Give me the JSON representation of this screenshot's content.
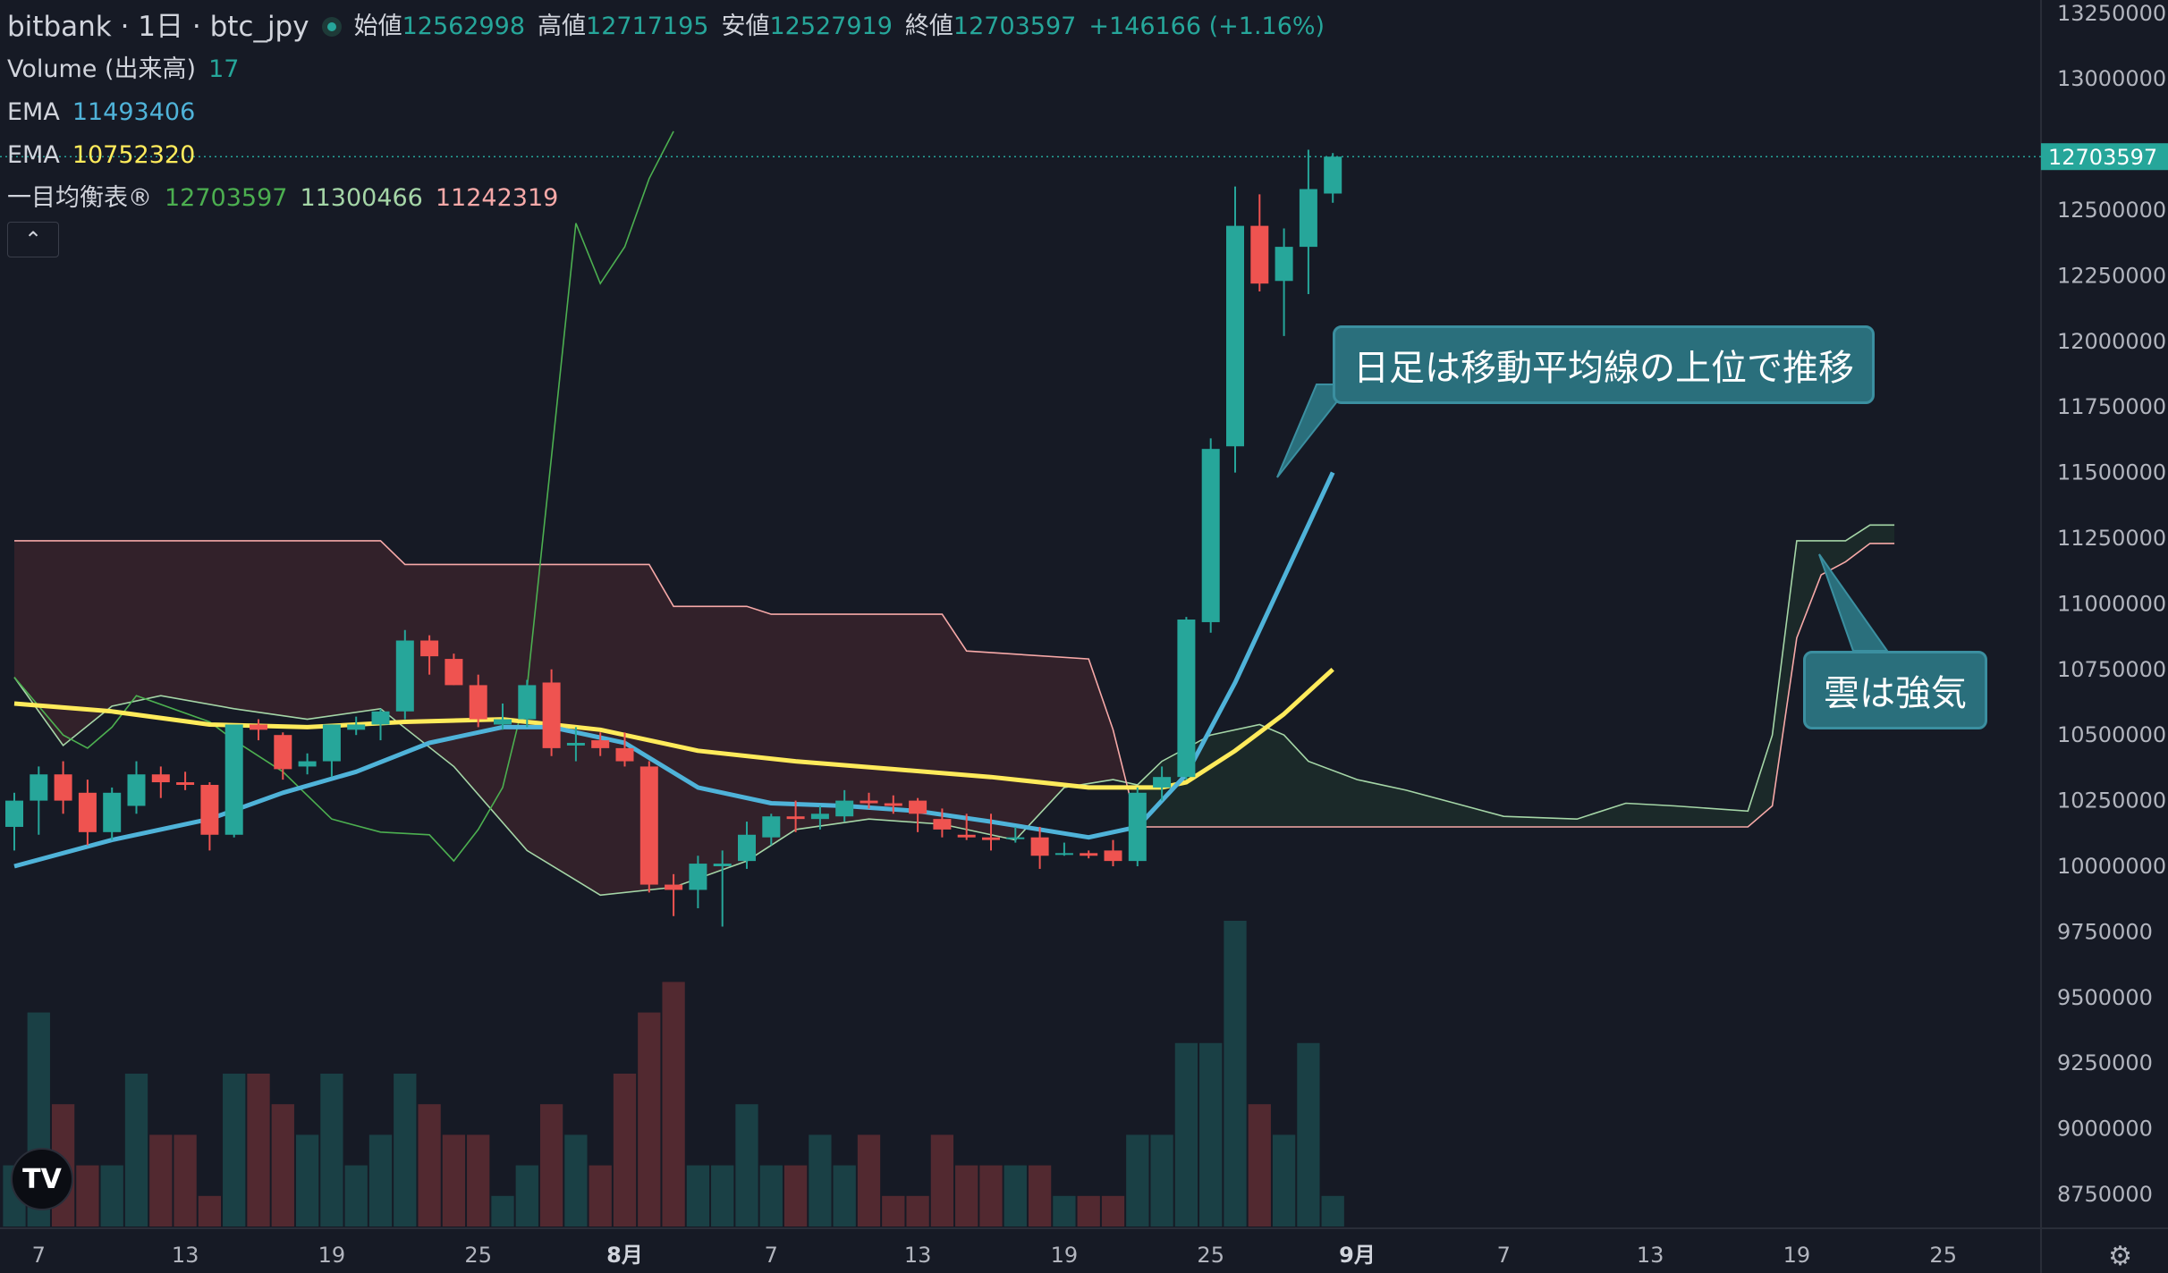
{
  "header": {
    "symbol": "bitbank · 1日 · btc_jpy",
    "open_label": "始値",
    "open": "12562998",
    "high_label": "高値",
    "high": "12717195",
    "low_label": "安値",
    "low": "12527919",
    "close_label": "終値",
    "close": "12703597",
    "change": "+146166 (+1.16%)"
  },
  "indicators": {
    "volume": {
      "label": "Volume (出来高)",
      "value": "17"
    },
    "ema1": {
      "label": "EMA",
      "value": "11493406",
      "color": "#4fb3d9"
    },
    "ema2": {
      "label": "EMA",
      "value": "10752320",
      "color": "#ffeb5b"
    },
    "ichimoku": {
      "label": "一目均衡表®",
      "v1": "12703597",
      "v2": "11300466",
      "v3": "11242319"
    }
  },
  "annotations": {
    "daily": "日足は移動平均線の上位で推移",
    "cloud": "雲は強気"
  },
  "logo": "TV",
  "chart_data": {
    "type": "candlestick",
    "colors": {
      "up": "#26a69a",
      "down": "#ef5350",
      "ema_fast": "#4fb3d9",
      "ema_slow": "#ffeb5b",
      "lagging": "#4caf50",
      "span_a": "#a5d6a7",
      "span_b": "#f7a9a8"
    },
    "yaxis": {
      "ticks": [
        8750000,
        9000000,
        9250000,
        9500000,
        9750000,
        10000000,
        10250000,
        10500000,
        10750000,
        11000000,
        11250000,
        11500000,
        11750000,
        12000000,
        12250000,
        12500000,
        12750000,
        13000000,
        13250000
      ],
      "ylim": [
        8610000,
        13310000
      ],
      "last_price": "12703597"
    },
    "xaxis": {
      "tick_labels": [
        "7",
        "13",
        "19",
        "25",
        "8月",
        "7",
        "13",
        "19",
        "25",
        "9月",
        "7",
        "13",
        "19",
        "25"
      ],
      "tick_days": [
        1,
        7,
        13,
        19,
        25,
        31,
        37,
        43,
        49,
        55,
        61,
        67,
        73,
        79
      ]
    },
    "candles": [
      {
        "day": 0,
        "o": 10150000,
        "h": 10280000,
        "l": 10060000,
        "c": 10250000
      },
      {
        "day": 1,
        "o": 10250000,
        "h": 10380000,
        "l": 10120000,
        "c": 10350000
      },
      {
        "day": 2,
        "o": 10350000,
        "h": 10400000,
        "l": 10200000,
        "c": 10250000
      },
      {
        "day": 3,
        "o": 10280000,
        "h": 10330000,
        "l": 10080000,
        "c": 10130000
      },
      {
        "day": 4,
        "o": 10130000,
        "h": 10300000,
        "l": 10100000,
        "c": 10280000
      },
      {
        "day": 5,
        "o": 10230000,
        "h": 10400000,
        "l": 10200000,
        "c": 10350000
      },
      {
        "day": 6,
        "o": 10350000,
        "h": 10380000,
        "l": 10260000,
        "c": 10320000
      },
      {
        "day": 7,
        "o": 10320000,
        "h": 10360000,
        "l": 10290000,
        "c": 10310000
      },
      {
        "day": 8,
        "o": 10310000,
        "h": 10320000,
        "l": 10060000,
        "c": 10120000
      },
      {
        "day": 9,
        "o": 10120000,
        "h": 10540000,
        "l": 10110000,
        "c": 10540000
      },
      {
        "day": 10,
        "o": 10540000,
        "h": 10560000,
        "l": 10480000,
        "c": 10520000
      },
      {
        "day": 11,
        "o": 10500000,
        "h": 10510000,
        "l": 10330000,
        "c": 10370000
      },
      {
        "day": 12,
        "o": 10380000,
        "h": 10430000,
        "l": 10350000,
        "c": 10400000
      },
      {
        "day": 13,
        "o": 10400000,
        "h": 10540000,
        "l": 10340000,
        "c": 10540000
      },
      {
        "day": 14,
        "o": 10520000,
        "h": 10570000,
        "l": 10500000,
        "c": 10540000
      },
      {
        "day": 15,
        "o": 10540000,
        "h": 10600000,
        "l": 10480000,
        "c": 10590000
      },
      {
        "day": 16,
        "o": 10590000,
        "h": 10900000,
        "l": 10560000,
        "c": 10860000
      },
      {
        "day": 17,
        "o": 10860000,
        "h": 10880000,
        "l": 10730000,
        "c": 10800000
      },
      {
        "day": 18,
        "o": 10790000,
        "h": 10810000,
        "l": 10690000,
        "c": 10690000
      },
      {
        "day": 19,
        "o": 10690000,
        "h": 10730000,
        "l": 10530000,
        "c": 10560000
      },
      {
        "day": 20,
        "o": 10540000,
        "h": 10620000,
        "l": 10520000,
        "c": 10560000
      },
      {
        "day": 21,
        "o": 10560000,
        "h": 10710000,
        "l": 10530000,
        "c": 10690000
      },
      {
        "day": 22,
        "o": 10700000,
        "h": 10750000,
        "l": 10420000,
        "c": 10450000
      },
      {
        "day": 23,
        "o": 10460000,
        "h": 10530000,
        "l": 10400000,
        "c": 10470000
      },
      {
        "day": 24,
        "o": 10480000,
        "h": 10510000,
        "l": 10420000,
        "c": 10450000
      },
      {
        "day": 25,
        "o": 10450000,
        "h": 10510000,
        "l": 10380000,
        "c": 10400000
      },
      {
        "day": 26,
        "o": 10380000,
        "h": 10400000,
        "l": 9900000,
        "c": 9930000
      },
      {
        "day": 27,
        "o": 9930000,
        "h": 9970000,
        "l": 9810000,
        "c": 9910000
      },
      {
        "day": 28,
        "o": 9910000,
        "h": 10040000,
        "l": 9840000,
        "c": 10010000
      },
      {
        "day": 29,
        "o": 10000000,
        "h": 10060000,
        "l": 9770000,
        "c": 10010000
      },
      {
        "day": 30,
        "o": 10020000,
        "h": 10170000,
        "l": 9990000,
        "c": 10120000
      },
      {
        "day": 31,
        "o": 10110000,
        "h": 10200000,
        "l": 10080000,
        "c": 10190000
      },
      {
        "day": 32,
        "o": 10190000,
        "h": 10250000,
        "l": 10130000,
        "c": 10180000
      },
      {
        "day": 33,
        "o": 10180000,
        "h": 10230000,
        "l": 10140000,
        "c": 10200000
      },
      {
        "day": 34,
        "o": 10190000,
        "h": 10290000,
        "l": 10170000,
        "c": 10250000
      },
      {
        "day": 35,
        "o": 10250000,
        "h": 10280000,
        "l": 10220000,
        "c": 10240000
      },
      {
        "day": 36,
        "o": 10240000,
        "h": 10270000,
        "l": 10200000,
        "c": 10230000
      },
      {
        "day": 37,
        "o": 10250000,
        "h": 10260000,
        "l": 10130000,
        "c": 10200000
      },
      {
        "day": 38,
        "o": 10180000,
        "h": 10220000,
        "l": 10110000,
        "c": 10140000
      },
      {
        "day": 39,
        "o": 10120000,
        "h": 10200000,
        "l": 10100000,
        "c": 10110000
      },
      {
        "day": 40,
        "o": 10110000,
        "h": 10200000,
        "l": 10060000,
        "c": 10100000
      },
      {
        "day": 41,
        "o": 10110000,
        "h": 10150000,
        "l": 10090000,
        "c": 10110000
      },
      {
        "day": 42,
        "o": 10110000,
        "h": 10150000,
        "l": 9990000,
        "c": 10040000
      },
      {
        "day": 43,
        "o": 10050000,
        "h": 10090000,
        "l": 10040000,
        "c": 10050000
      },
      {
        "day": 44,
        "o": 10050000,
        "h": 10060000,
        "l": 10030000,
        "c": 10040000
      },
      {
        "day": 45,
        "o": 10060000,
        "h": 10100000,
        "l": 10000000,
        "c": 10020000
      },
      {
        "day": 46,
        "o": 10020000,
        "h": 10300000,
        "l": 10000000,
        "c": 10280000
      },
      {
        "day": 47,
        "o": 10300000,
        "h": 10380000,
        "l": 10250000,
        "c": 10340000
      },
      {
        "day": 48,
        "o": 10340000,
        "h": 10950000,
        "l": 10330000,
        "c": 10940000
      },
      {
        "day": 49,
        "o": 10930000,
        "h": 11630000,
        "l": 10890000,
        "c": 11590000
      },
      {
        "day": 50,
        "o": 11600000,
        "h": 12590000,
        "l": 11500000,
        "c": 12440000
      },
      {
        "day": 51,
        "o": 12440000,
        "h": 12560000,
        "l": 12190000,
        "c": 12220000
      },
      {
        "day": 52,
        "o": 12230000,
        "h": 12430000,
        "l": 12020000,
        "c": 12360000
      },
      {
        "day": 53,
        "o": 12360000,
        "h": 12730000,
        "l": 12180000,
        "c": 12580000
      },
      {
        "day": 54,
        "o": 12562998,
        "h": 12717195,
        "l": 12527919,
        "c": 12703597
      }
    ],
    "volume": [
      2,
      7,
      4,
      2,
      2,
      5,
      3,
      3,
      1,
      5,
      5,
      4,
      3,
      5,
      2,
      3,
      5,
      4,
      3,
      3,
      1,
      2,
      4,
      3,
      2,
      5,
      7,
      8,
      2,
      2,
      4,
      2,
      2,
      3,
      2,
      3,
      1,
      1,
      3,
      2,
      2,
      2,
      2,
      1,
      1,
      1,
      3,
      3,
      6,
      6,
      10,
      4,
      3,
      6,
      1
    ],
    "ema_fast": [
      [
        0,
        10000000
      ],
      [
        4,
        10100000
      ],
      [
        8,
        10180000
      ],
      [
        11,
        10280000
      ],
      [
        14,
        10360000
      ],
      [
        17,
        10470000
      ],
      [
        20,
        10530000
      ],
      [
        22,
        10530000
      ],
      [
        25,
        10470000
      ],
      [
        28,
        10300000
      ],
      [
        31,
        10240000
      ],
      [
        34,
        10230000
      ],
      [
        37,
        10210000
      ],
      [
        40,
        10170000
      ],
      [
        44,
        10110000
      ],
      [
        46,
        10150000
      ],
      [
        48,
        10350000
      ],
      [
        50,
        10700000
      ],
      [
        52,
        11100000
      ],
      [
        54,
        11500000
      ]
    ],
    "ema_slow": [
      [
        0,
        10620000
      ],
      [
        4,
        10590000
      ],
      [
        8,
        10540000
      ],
      [
        12,
        10530000
      ],
      [
        16,
        10550000
      ],
      [
        20,
        10560000
      ],
      [
        24,
        10520000
      ],
      [
        28,
        10440000
      ],
      [
        32,
        10400000
      ],
      [
        36,
        10370000
      ],
      [
        40,
        10340000
      ],
      [
        44,
        10300000
      ],
      [
        47,
        10300000
      ],
      [
        48,
        10320000
      ],
      [
        50,
        10440000
      ],
      [
        52,
        10580000
      ],
      [
        54,
        10750000
      ]
    ],
    "lagging": [
      [
        0,
        10720000
      ],
      [
        2,
        10500000
      ],
      [
        3,
        10450000
      ],
      [
        4,
        10530000
      ],
      [
        5,
        10650000
      ],
      [
        8,
        10550000
      ],
      [
        9,
        10480000
      ],
      [
        11,
        10360000
      ],
      [
        13,
        10180000
      ],
      [
        15,
        10130000
      ],
      [
        17,
        10120000
      ],
      [
        18,
        10020000
      ],
      [
        19,
        10140000
      ],
      [
        20,
        10300000
      ],
      [
        21,
        10680000
      ],
      [
        22,
        11560000
      ],
      [
        23,
        12450000
      ],
      [
        24,
        12220000
      ],
      [
        25,
        12360000
      ],
      [
        26,
        12620000
      ],
      [
        27,
        12800000
      ]
    ],
    "span_a": [
      [
        0,
        10720000
      ],
      [
        2,
        10460000
      ],
      [
        4,
        10610000
      ],
      [
        6,
        10650000
      ],
      [
        9,
        10600000
      ],
      [
        12,
        10560000
      ],
      [
        15,
        10600000
      ],
      [
        18,
        10380000
      ],
      [
        21,
        10060000
      ],
      [
        24,
        9890000
      ],
      [
        27,
        9920000
      ],
      [
        30,
        10020000
      ],
      [
        32,
        10140000
      ],
      [
        35,
        10180000
      ],
      [
        38,
        10160000
      ],
      [
        41,
        10100000
      ],
      [
        43,
        10300000
      ],
      [
        45,
        10330000
      ],
      [
        46,
        10310000
      ],
      [
        47,
        10400000
      ],
      [
        49,
        10500000
      ],
      [
        51,
        10540000
      ],
      [
        52,
        10500000
      ],
      [
        53,
        10400000
      ],
      [
        55,
        10330000
      ],
      [
        57,
        10290000
      ],
      [
        59,
        10240000
      ],
      [
        61,
        10190000
      ],
      [
        64,
        10180000
      ],
      [
        66,
        10240000
      ],
      [
        68,
        10230000
      ],
      [
        71,
        10210000
      ],
      [
        72,
        10500000
      ],
      [
        73,
        11240000
      ],
      [
        75,
        11240000
      ],
      [
        76,
        11300000
      ],
      [
        77,
        11300000
      ]
    ],
    "span_b": [
      [
        0,
        11240000
      ],
      [
        15,
        11240000
      ],
      [
        16,
        11150000
      ],
      [
        26,
        11150000
      ],
      [
        27,
        10990000
      ],
      [
        30,
        10990000
      ],
      [
        31,
        10960000
      ],
      [
        38,
        10960000
      ],
      [
        39,
        10820000
      ],
      [
        44,
        10790000
      ],
      [
        45,
        10520000
      ],
      [
        46,
        10150000
      ],
      [
        71,
        10150000
      ],
      [
        72,
        10230000
      ],
      [
        73,
        10870000
      ],
      [
        74,
        11110000
      ],
      [
        75,
        11160000
      ],
      [
        76,
        11230000
      ],
      [
        77,
        11230000
      ]
    ]
  }
}
